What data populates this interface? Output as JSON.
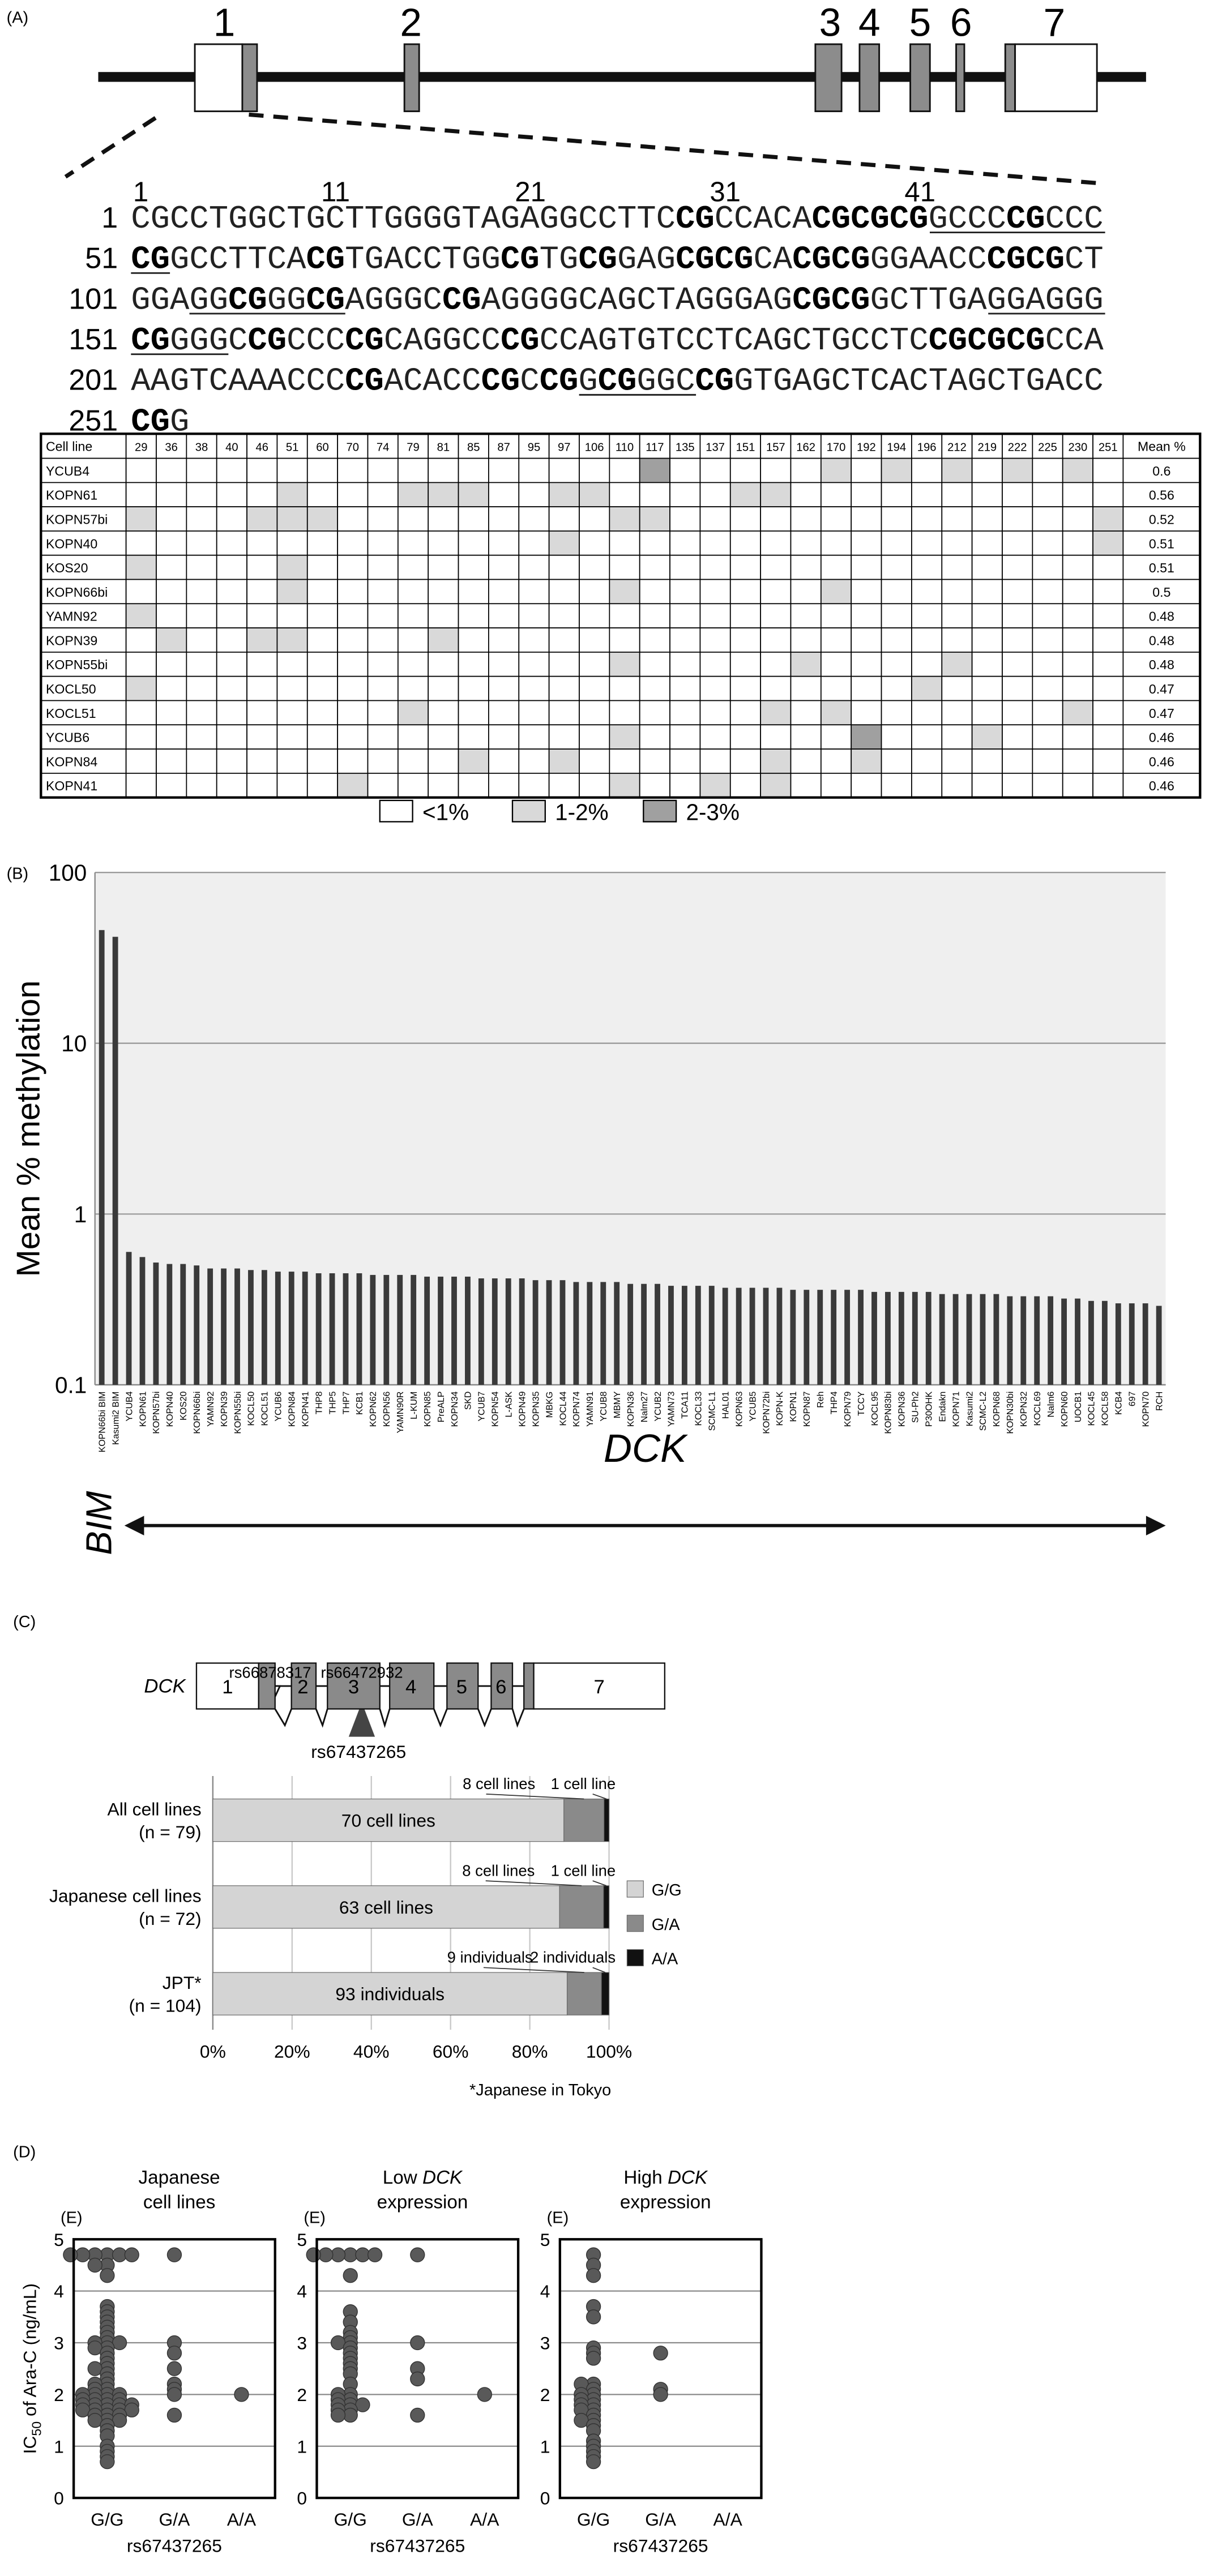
{
  "panel_labels": [
    "(A)",
    "(B)",
    "(C)",
    "(D)"
  ],
  "gene_diagram": {
    "exons": [
      "1",
      "2",
      "3",
      "4",
      "5",
      "6",
      "7"
    ]
  },
  "sequence": {
    "ruler": [
      1,
      11,
      21,
      31,
      41
    ],
    "lines": [
      {
        "start": 1,
        "seq": "CGCCTGGCTGCTTGGGGTAGAGGCCTTCCGCCACACGCGCGGCCCCGCCC"
      },
      {
        "start": 51,
        "seq": "CGGCCTTCACGTGACCTGGCGTGCGGAGCGCGCACGCGGGAACCCGCGCT"
      },
      {
        "start": 101,
        "seq": "GGAGGCGGGCGAGGGCCGAGGGGCAGCTAGGGAGCGCGGCTTGAGGAGGG"
      },
      {
        "start": 151,
        "seq": "CGGGGCCGCCCCGCAGGCCCGCCAGTGTCCTCAGCTGCCTCCGCGCGCCA"
      },
      {
        "start": 201,
        "seq": "AAGTCAAACCCCGACACCCGCCGGCGGGCCGGTGAGCTCACTAGCTGACC"
      },
      {
        "start": 251,
        "seq": "CGG"
      }
    ],
    "underline": [
      [
        42,
        52
      ],
      [
        104,
        111
      ],
      [
        145,
        155
      ],
      [
        224,
        229
      ]
    ]
  },
  "table": {
    "header": "Cell line",
    "mean_header": "Mean %",
    "cpg": [
      29,
      36,
      38,
      40,
      46,
      51,
      60,
      70,
      74,
      79,
      81,
      85,
      87,
      95,
      97,
      106,
      110,
      117,
      135,
      137,
      151,
      157,
      162,
      170,
      192,
      194,
      196,
      212,
      219,
      222,
      225,
      230,
      251
    ],
    "rows": [
      {
        "name": "YCUB4",
        "mean": 0.6,
        "cells": [
          0,
          0,
          0,
          0,
          0,
          0,
          0,
          0,
          0,
          0,
          0,
          0,
          0,
          0,
          0,
          0,
          0,
          2,
          0,
          0,
          0,
          0,
          0,
          1,
          0,
          1,
          0,
          1,
          0,
          1,
          0,
          1,
          0
        ]
      },
      {
        "name": "KOPN61",
        "mean": 0.56,
        "cells": [
          0,
          0,
          0,
          0,
          0,
          1,
          0,
          0,
          0,
          1,
          1,
          1,
          0,
          0,
          1,
          1,
          0,
          0,
          0,
          0,
          1,
          1,
          0,
          0,
          0,
          0,
          0,
          0,
          0,
          0,
          0,
          0,
          0
        ]
      },
      {
        "name": "KOPN57bi",
        "mean": 0.52,
        "cells": [
          1,
          0,
          0,
          0,
          1,
          1,
          1,
          0,
          0,
          0,
          0,
          0,
          0,
          0,
          0,
          0,
          1,
          1,
          0,
          0,
          0,
          0,
          0,
          0,
          0,
          0,
          0,
          0,
          0,
          0,
          0,
          0,
          1
        ]
      },
      {
        "name": "KOPN40",
        "mean": 0.51,
        "cells": [
          0,
          0,
          0,
          0,
          0,
          0,
          0,
          0,
          0,
          0,
          0,
          0,
          0,
          0,
          1,
          0,
          0,
          0,
          0,
          0,
          0,
          0,
          0,
          0,
          0,
          0,
          0,
          0,
          0,
          0,
          0,
          0,
          1
        ]
      },
      {
        "name": "KOS20",
        "mean": 0.51,
        "cells": [
          1,
          0,
          0,
          0,
          0,
          1,
          0,
          0,
          0,
          0,
          0,
          0,
          0,
          0,
          0,
          0,
          0,
          0,
          0,
          0,
          0,
          0,
          0,
          0,
          0,
          0,
          0,
          0,
          0,
          0,
          0,
          0,
          0
        ]
      },
      {
        "name": "KOPN66bi",
        "mean": 0.5,
        "cells": [
          0,
          0,
          0,
          0,
          0,
          1,
          0,
          0,
          0,
          0,
          0,
          0,
          0,
          0,
          0,
          0,
          1,
          0,
          0,
          0,
          0,
          0,
          0,
          1,
          0,
          0,
          0,
          0,
          0,
          0,
          0,
          0,
          0
        ]
      },
      {
        "name": "YAMN92",
        "mean": 0.48,
        "cells": [
          1,
          0,
          0,
          0,
          0,
          0,
          0,
          0,
          0,
          0,
          0,
          0,
          0,
          0,
          0,
          0,
          0,
          0,
          0,
          0,
          0,
          0,
          0,
          0,
          0,
          0,
          0,
          0,
          0,
          0,
          0,
          0,
          0
        ]
      },
      {
        "name": "KOPN39",
        "mean": 0.48,
        "cells": [
          0,
          1,
          0,
          0,
          1,
          1,
          0,
          0,
          0,
          0,
          1,
          0,
          0,
          0,
          0,
          0,
          0,
          0,
          0,
          0,
          0,
          0,
          0,
          0,
          0,
          0,
          0,
          0,
          0,
          0,
          0,
          0,
          0
        ]
      },
      {
        "name": "KOPN55bi",
        "mean": 0.48,
        "cells": [
          0,
          0,
          0,
          0,
          0,
          0,
          0,
          0,
          0,
          0,
          0,
          0,
          0,
          0,
          0,
          0,
          1,
          0,
          0,
          0,
          0,
          0,
          1,
          0,
          0,
          0,
          0,
          1,
          0,
          0,
          0,
          0,
          0
        ]
      },
      {
        "name": "KOCL50",
        "mean": 0.47,
        "cells": [
          1,
          0,
          0,
          0,
          0,
          0,
          0,
          0,
          0,
          0,
          0,
          0,
          0,
          0,
          0,
          0,
          0,
          0,
          0,
          0,
          0,
          0,
          0,
          0,
          0,
          0,
          1,
          0,
          0,
          0,
          0,
          0,
          0
        ]
      },
      {
        "name": "KOCL51",
        "mean": 0.47,
        "cells": [
          0,
          0,
          0,
          0,
          0,
          0,
          0,
          0,
          0,
          1,
          0,
          0,
          0,
          0,
          0,
          0,
          0,
          0,
          0,
          0,
          0,
          1,
          0,
          1,
          0,
          0,
          0,
          0,
          0,
          0,
          0,
          1,
          0
        ]
      },
      {
        "name": "YCUB6",
        "mean": 0.46,
        "cells": [
          0,
          0,
          0,
          0,
          0,
          0,
          0,
          0,
          0,
          0,
          0,
          0,
          0,
          0,
          0,
          0,
          1,
          0,
          0,
          0,
          0,
          0,
          0,
          0,
          2,
          0,
          0,
          0,
          1,
          0,
          0,
          0,
          0
        ]
      },
      {
        "name": "KOPN84",
        "mean": 0.46,
        "cells": [
          0,
          0,
          0,
          0,
          0,
          0,
          0,
          0,
          0,
          0,
          0,
          1,
          0,
          0,
          1,
          0,
          0,
          0,
          0,
          0,
          0,
          1,
          0,
          0,
          1,
          0,
          0,
          0,
          0,
          0,
          0,
          0,
          0
        ]
      },
      {
        "name": "KOPN41",
        "mean": 0.46,
        "cells": [
          0,
          0,
          0,
          0,
          0,
          0,
          0,
          1,
          0,
          0,
          0,
          0,
          0,
          0,
          0,
          0,
          1,
          0,
          0,
          1,
          0,
          1,
          0,
          0,
          0,
          0,
          0,
          0,
          0,
          0,
          0,
          0,
          0
        ]
      }
    ],
    "legend": [
      {
        "label": "<1%",
        "color": "#ffffff"
      },
      {
        "label": "1-2%",
        "color": "#d9d9d9"
      },
      {
        "label": "2-3%",
        "color": "#a0a0a0"
      }
    ]
  },
  "chart_data": [
    {
      "type": "bar",
      "log": true,
      "ylabel": "Mean % methylation",
      "categories": [
        "KOPN66bi BIM",
        "Kasumi2 BIM",
        "YCUB4",
        "KOPN61",
        "KOPN57bi",
        "KOPN40",
        "KOS20",
        "KOPN66bi",
        "YAMN92",
        "KOPN39",
        "KOPN55bi",
        "KOCL50",
        "KOCL51",
        "YCUB6",
        "KOPN84",
        "KOPN41",
        "THP8",
        "THP5",
        "THP7",
        "KCB1",
        "KOPN62",
        "KOPN56",
        "YAMN90R",
        "L-KUM",
        "KOPN85",
        "PreALP",
        "KOPN34",
        "SKD",
        "YCUB7",
        "KOPN54",
        "L-ASK",
        "KOPN49",
        "KOPN35",
        "MBKG",
        "KOCL44",
        "KOPN74",
        "YAMN91",
        "YCUB8",
        "MBMY",
        "KOPN36",
        "Nalm27",
        "YCUB2",
        "YAMN73",
        "TCA11",
        "KOCL33",
        "SCMC-L1",
        "HAL01",
        "KOPN63",
        "YCUB5",
        "KOPN72bi",
        "KOPN-K",
        "KOPN1",
        "KOPN87",
        "Reh",
        "THP4",
        "KOPN79",
        "TCCY",
        "KOCL95",
        "KOPN83bi",
        "KOPN36",
        "SU-Ph2",
        "P30OHK",
        "Endakn",
        "KOPN71",
        "Kasumi2",
        "SCMC-L2",
        "KOPN68",
        "KOPN30bi",
        "KOPN32",
        "KOCL69",
        "Nalm6",
        "KOPN60",
        "UOCB1",
        "KOCL45",
        "KOCL58",
        "KCB4",
        "697",
        "KOPN70",
        "RCH"
      ],
      "values": [
        46,
        42,
        0.6,
        0.56,
        0.52,
        0.51,
        0.51,
        0.5,
        0.48,
        0.48,
        0.48,
        0.47,
        0.47,
        0.46,
        0.46,
        0.46,
        0.45,
        0.45,
        0.45,
        0.45,
        0.44,
        0.44,
        0.44,
        0.44,
        0.43,
        0.43,
        0.43,
        0.43,
        0.42,
        0.42,
        0.42,
        0.42,
        0.41,
        0.41,
        0.41,
        0.4,
        0.4,
        0.4,
        0.4,
        0.39,
        0.39,
        0.39,
        0.38,
        0.38,
        0.38,
        0.38,
        0.37,
        0.37,
        0.37,
        0.37,
        0.37,
        0.36,
        0.36,
        0.36,
        0.36,
        0.36,
        0.36,
        0.35,
        0.35,
        0.35,
        0.35,
        0.35,
        0.34,
        0.34,
        0.34,
        0.34,
        0.34,
        0.33,
        0.33,
        0.33,
        0.33,
        0.32,
        0.32,
        0.31,
        0.31,
        0.3,
        0.3,
        0.3,
        0.29
      ],
      "color": "#3a3a3a",
      "background": "#efefef",
      "ylim": [
        0.1,
        100
      ],
      "yticks": [
        0.1,
        1,
        10,
        100
      ],
      "grid": true,
      "annotations": [
        "BIM",
        "DCK"
      ]
    },
    {
      "type": "stacked_barh",
      "stacking": "percent",
      "gene": {
        "name": "DCK",
        "exons": [
          "1",
          "2",
          "3",
          "4",
          "5",
          "6",
          "7"
        ],
        "snps": [
          "rs66878317",
          "rs66472932",
          "rs67437265"
        ]
      },
      "categories": [
        [
          "All cell lines",
          "(n = 79)"
        ],
        [
          "Japanese cell lines",
          "(n = 72)"
        ],
        [
          "JPT*",
          "(n = 104)"
        ]
      ],
      "series": [
        {
          "name": "G/G",
          "color": "#d4d4d4",
          "values": [
            70,
            63,
            93
          ],
          "value_labels": [
            "70 cell lines",
            "63 cell lines",
            "93 individuals"
          ]
        },
        {
          "name": "G/A",
          "color": "#8a8a8a",
          "values": [
            8,
            8,
            9
          ],
          "value_labels": [
            "8 cell lines",
            "8 cell lines",
            "9 individuals"
          ]
        },
        {
          "name": "A/A",
          "color": "#111111",
          "values": [
            1,
            1,
            2
          ],
          "value_labels": [
            "1 cell line",
            "1 cell line",
            "2 individuals"
          ]
        }
      ],
      "xlim": [
        0,
        100
      ],
      "xticks": [
        {
          "value": 0,
          "label": "0%"
        },
        {
          "value": 20,
          "label": "20%"
        },
        {
          "value": 40,
          "label": "40%"
        },
        {
          "value": 60,
          "label": "60%"
        },
        {
          "value": 80,
          "label": "80%"
        },
        {
          "value": 100,
          "label": "100%"
        }
      ],
      "grid": true,
      "note": "*Japanese in Tokyo"
    },
    {
      "type": "strip",
      "panel": "(E)",
      "title": [
        "Japanese",
        "cell lines"
      ],
      "ylabel": {
        "main": "IC",
        "sub": "50",
        "rest": " of Ara-C (ng/mL)"
      },
      "xlabel": "rs67437265",
      "categories": [
        "G/G",
        "G/A",
        "A/A"
      ],
      "values": [
        [
          4.7,
          4.7,
          4.7,
          4.7,
          4.7,
          4.7,
          4.5,
          4.5,
          4.3,
          3.7,
          3.6,
          3.5,
          3.4,
          3.3,
          3.2,
          3.1,
          3.0,
          3.0,
          3.0,
          2.9,
          2.9,
          2.8,
          2.7,
          2.6,
          2.5,
          2.5,
          2.4,
          2.3,
          2.2,
          2.2,
          2.1,
          2.1,
          2.0,
          2.0,
          2.0,
          2.0,
          1.9,
          1.9,
          1.9,
          1.9,
          1.8,
          1.8,
          1.8,
          1.8,
          1.8,
          1.7,
          1.7,
          1.7,
          1.7,
          1.7,
          1.6,
          1.6,
          1.6,
          1.5,
          1.5,
          1.5,
          1.4,
          1.3,
          1.2,
          1.0,
          0.9,
          0.8,
          0.7
        ],
        [
          4.7,
          3.0,
          2.8,
          2.5,
          2.2,
          2.1,
          2.0,
          1.6
        ],
        [
          2.0
        ]
      ],
      "color": "#595959",
      "ylim": [
        0,
        5
      ],
      "yticks": [
        0,
        1,
        2,
        3,
        4,
        5
      ],
      "grid": true
    },
    {
      "type": "strip",
      "panel": "(E)",
      "title": [
        "Low DCK",
        "expression"
      ],
      "italic": "DCK",
      "xlabel": "rs67437265",
      "categories": [
        "G/G",
        "G/A",
        "A/A"
      ],
      "values": [
        [
          4.7,
          4.7,
          4.7,
          4.7,
          4.7,
          4.7,
          4.3,
          3.6,
          3.4,
          3.2,
          3.1,
          3.0,
          3.0,
          2.9,
          2.8,
          2.7,
          2.6,
          2.5,
          2.4,
          2.2,
          2.0,
          2.0,
          1.9,
          1.9,
          1.8,
          1.8,
          1.8,
          1.7,
          1.7,
          1.6,
          1.6
        ],
        [
          4.7,
          3.0,
          2.5,
          2.3,
          1.6
        ],
        [
          2.0
        ]
      ],
      "color": "#595959",
      "ylim": [
        0,
        5
      ],
      "yticks": [
        0,
        1,
        2,
        3,
        4,
        5
      ],
      "grid": true
    },
    {
      "type": "strip",
      "panel": "(E)",
      "title": [
        "High DCK",
        "expression"
      ],
      "italic": "DCK",
      "xlabel": "rs67437265",
      "categories": [
        "G/G",
        "G/A",
        "A/A"
      ],
      "values": [
        [
          4.7,
          4.5,
          4.3,
          3.7,
          3.5,
          2.9,
          2.8,
          2.7,
          2.2,
          2.2,
          2.1,
          2.0,
          2.0,
          1.9,
          1.9,
          1.8,
          1.8,
          1.7,
          1.7,
          1.6,
          1.5,
          1.5,
          1.4,
          1.3,
          1.1,
          1.0,
          0.9,
          0.8,
          0.7
        ],
        [
          2.8,
          2.1,
          2.0
        ],
        []
      ],
      "color": "#595959",
      "ylim": [
        0,
        5
      ],
      "yticks": [
        0,
        1,
        2,
        3,
        4,
        5
      ],
      "grid": true
    }
  ]
}
